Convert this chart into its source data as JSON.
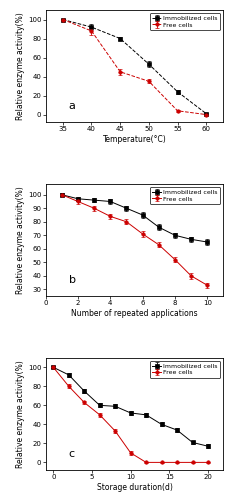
{
  "panel_a": {
    "title": "a",
    "xlabel": "Temperature(°C)",
    "ylabel": "Relative enzyme activity(%)",
    "xlim": [
      32,
      63
    ],
    "ylim": [
      -8,
      110
    ],
    "xticks": [
      35,
      40,
      45,
      50,
      55,
      60
    ],
    "yticks": [
      0,
      20,
      40,
      60,
      80,
      100
    ],
    "immobilized": {
      "x": [
        35,
        40,
        45,
        50,
        55,
        60
      ],
      "y": [
        100,
        92,
        80,
        53,
        24,
        1
      ],
      "yerr": [
        1,
        3,
        2,
        3,
        2,
        0.5
      ],
      "color": "black",
      "linestyle": "--",
      "marker": "s",
      "label": "Immobilized cells"
    },
    "free": {
      "x": [
        35,
        40,
        45,
        50,
        55,
        60
      ],
      "y": [
        100,
        88,
        45,
        35,
        4,
        0
      ],
      "yerr": [
        1,
        4,
        3,
        2,
        1,
        0.5
      ],
      "color": "#cc0000",
      "linestyle": "--",
      "marker": "o",
      "label": "Free cells"
    }
  },
  "panel_b": {
    "title": "b",
    "xlabel": "Number of repeated applications",
    "ylabel": "Relative enzyme activity(%)",
    "xlim": [
      0,
      11
    ],
    "ylim": [
      25,
      108
    ],
    "xticks": [
      0,
      2,
      4,
      6,
      8,
      10
    ],
    "yticks": [
      30,
      40,
      50,
      60,
      70,
      80,
      90,
      100
    ],
    "immobilized": {
      "x": [
        1,
        2,
        3,
        4,
        5,
        6,
        7,
        8,
        9,
        10
      ],
      "y": [
        100,
        97,
        96,
        95,
        90,
        85,
        76,
        70,
        67,
        65
      ],
      "yerr": [
        1,
        1.5,
        1.5,
        2,
        2,
        2,
        2,
        2,
        2,
        2
      ],
      "color": "black",
      "linestyle": "-",
      "marker": "s",
      "label": "Immobilized cells"
    },
    "free": {
      "x": [
        1,
        2,
        3,
        4,
        5,
        6,
        7,
        8,
        9,
        10
      ],
      "y": [
        100,
        95,
        90,
        84,
        80,
        71,
        63,
        52,
        40,
        33
      ],
      "yerr": [
        1,
        2,
        2,
        2,
        2,
        2,
        2,
        2,
        2,
        2
      ],
      "color": "#cc0000",
      "linestyle": "-",
      "marker": "o",
      "label": "Free cells"
    }
  },
  "panel_c": {
    "title": "c",
    "xlabel": "Storage duration(d)",
    "ylabel": "Relative enzyme activity(%)",
    "xlim": [
      -1,
      22
    ],
    "ylim": [
      -8,
      110
    ],
    "xticks": [
      0,
      5,
      10,
      15,
      20
    ],
    "yticks": [
      0,
      20,
      40,
      60,
      80,
      100
    ],
    "immobilized": {
      "x": [
        0,
        2,
        4,
        6,
        8,
        10,
        12,
        14,
        16,
        18,
        20
      ],
      "y": [
        100,
        92,
        75,
        60,
        59,
        52,
        50,
        40,
        34,
        21,
        17
      ],
      "yerr": [
        1,
        2,
        2,
        2,
        2,
        2,
        2,
        2,
        2,
        2,
        2
      ],
      "color": "black",
      "linestyle": "-",
      "marker": "s",
      "label": "Immobilized cells"
    },
    "free": {
      "x": [
        0,
        2,
        4,
        6,
        8,
        10,
        12,
        14,
        16,
        18,
        20
      ],
      "y": [
        100,
        80,
        63,
        50,
        33,
        10,
        0,
        0,
        0,
        0,
        0
      ],
      "yerr": [
        1,
        2,
        2,
        2,
        2,
        2,
        0.5,
        0.5,
        0.5,
        0.5,
        0.5
      ],
      "color": "#cc0000",
      "linestyle": "-",
      "marker": "o",
      "label": "Free cells"
    }
  },
  "background_color": "#ffffff",
  "label_fontsize": 5.5,
  "tick_fontsize": 5,
  "legend_fontsize": 4.5,
  "panel_label_fontsize": 8
}
